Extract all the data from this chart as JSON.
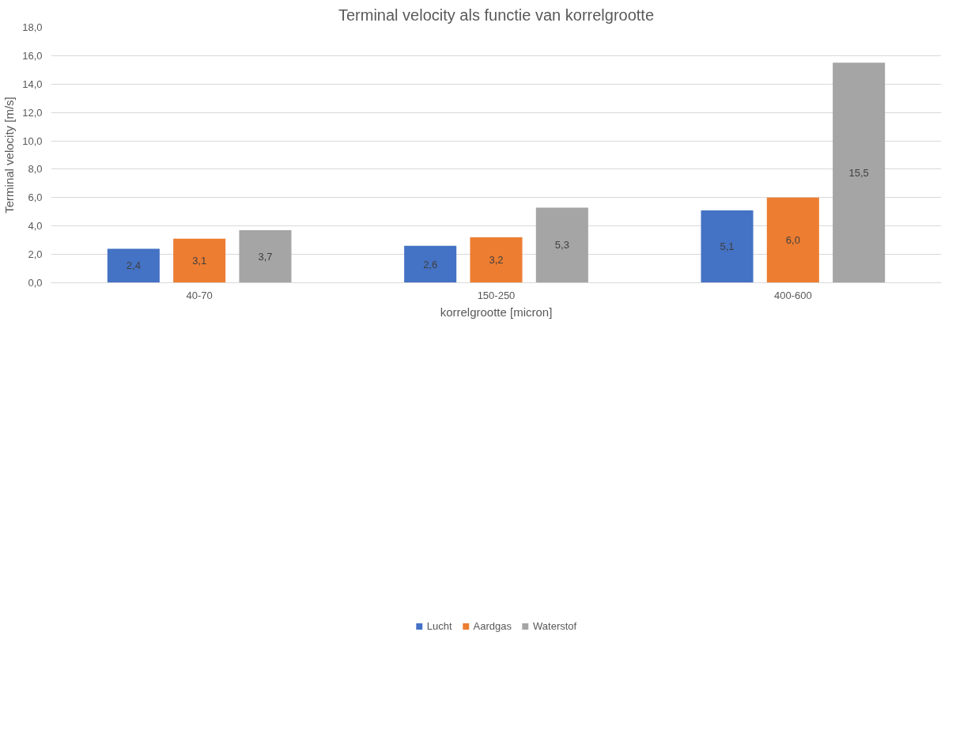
{
  "chart_data": {
    "type": "bar",
    "title": "Terminal velocity als functie van korrelgrootte",
    "xlabel": "korrelgrootte [micron]",
    "ylabel": "Terminal velocity [m/s]",
    "categories": [
      "40-70",
      "150-250",
      "400-600"
    ],
    "series": [
      {
        "name": "Lucht",
        "color": "#4472c4",
        "values": [
          2.4,
          2.6,
          5.1
        ],
        "value_labels": [
          "2,4",
          "2,6",
          "5,1"
        ]
      },
      {
        "name": "Aardgas",
        "color": "#ed7d31",
        "values": [
          3.1,
          3.2,
          6.0
        ],
        "value_labels": [
          "3,1",
          "3,2",
          "6,0"
        ]
      },
      {
        "name": "Waterstof",
        "color": "#a5a5a5",
        "values": [
          3.7,
          5.3,
          15.5
        ],
        "value_labels": [
          "3,7",
          "5,3",
          "15,5"
        ]
      }
    ],
    "ylim": [
      0,
      18
    ],
    "yticks": [
      {
        "value": 0,
        "label": "0,0"
      },
      {
        "value": 2,
        "label": "2,0"
      },
      {
        "value": 4,
        "label": "4,0"
      },
      {
        "value": 6,
        "label": "6,0"
      },
      {
        "value": 8,
        "label": "8,0"
      },
      {
        "value": 10,
        "label": "10,0"
      },
      {
        "value": 12,
        "label": "12,0"
      },
      {
        "value": 14,
        "label": "14,0"
      },
      {
        "value": 16,
        "label": "16,0"
      },
      {
        "value": 18,
        "label": "18,0"
      }
    ],
    "grid": "y",
    "legend": "bottom"
  }
}
